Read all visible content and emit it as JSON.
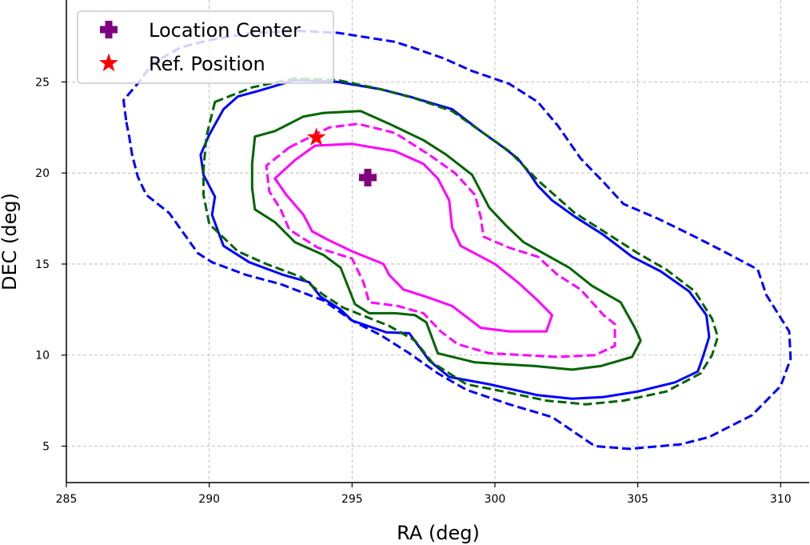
{
  "chart_data": {
    "type": "line",
    "xlabel": "RA (deg)",
    "ylabel": "DEC (deg)",
    "xlim": [
      285,
      311
    ],
    "ylim": [
      3,
      29.5
    ],
    "x_ticks": [
      285,
      290,
      295,
      300,
      305,
      310
    ],
    "y_ticks": [
      5,
      10,
      15,
      20,
      25
    ],
    "grid": true,
    "legend_placement": "top-left",
    "legend": [
      {
        "label": "Location Center",
        "marker": "plus",
        "color": "#800080"
      },
      {
        "label": "Ref. Position",
        "marker": "star",
        "color": "#ff0000"
      }
    ],
    "series": [
      {
        "color": "#0000ff",
        "dash": true,
        "points": [
          [
            287.1,
            22.8
          ],
          [
            287.2,
            22.0
          ],
          [
            287.3,
            21.0
          ],
          [
            287.5,
            19.8
          ],
          [
            287.8,
            18.8
          ],
          [
            288.6,
            17.8
          ],
          [
            289.6,
            15.6
          ],
          [
            290.1,
            15.1
          ],
          [
            291.3,
            14.4
          ],
          [
            292.5,
            13.9
          ],
          [
            294.0,
            13.0
          ],
          [
            295.0,
            11.9
          ],
          [
            296.0,
            11.1
          ],
          [
            297.0,
            10.1
          ],
          [
            298.0,
            9.0
          ],
          [
            299.0,
            8.1
          ],
          [
            300.5,
            7.3
          ],
          [
            302.0,
            6.6
          ],
          [
            303.5,
            5.0
          ],
          [
            304.7,
            4.85
          ],
          [
            306.5,
            5.1
          ],
          [
            307.5,
            5.5
          ],
          [
            309.0,
            6.7
          ],
          [
            310.0,
            8.3
          ],
          [
            310.35,
            9.8
          ],
          [
            310.3,
            11.3
          ],
          [
            309.5,
            13.3
          ],
          [
            309.2,
            14.7
          ],
          [
            308.0,
            15.7
          ],
          [
            307.0,
            16.5
          ],
          [
            305.7,
            17.5
          ],
          [
            304.5,
            18.3
          ],
          [
            303.8,
            19.5
          ],
          [
            303.0,
            20.8
          ],
          [
            302.2,
            22.6
          ],
          [
            301.5,
            23.9
          ],
          [
            300.5,
            24.9
          ],
          [
            299.2,
            25.6
          ],
          [
            298.2,
            26.3
          ],
          [
            297.1,
            26.9
          ],
          [
            296.5,
            27.2
          ],
          [
            295.3,
            27.5
          ],
          [
            294.5,
            27.7
          ],
          [
            293.2,
            27.8
          ],
          [
            291.5,
            27.7
          ],
          [
            290.0,
            27.3
          ],
          [
            289.0,
            26.9
          ],
          [
            288.0,
            26.0
          ],
          [
            287.6,
            25.1
          ],
          [
            287.0,
            24.0
          ],
          [
            287.1,
            22.8
          ]
        ]
      },
      {
        "color": "#0000ff",
        "dash": false,
        "points": [
          [
            291.0,
            24.2
          ],
          [
            291.7,
            24.5
          ],
          [
            293.0,
            25.1
          ],
          [
            294.5,
            25.0
          ],
          [
            296.0,
            24.6
          ],
          [
            297.0,
            24.2
          ],
          [
            298.5,
            23.5
          ],
          [
            299.5,
            22.3
          ],
          [
            300.3,
            21.4
          ],
          [
            300.8,
            20.8
          ],
          [
            301.2,
            20.0
          ],
          [
            301.5,
            19.3
          ],
          [
            302.0,
            18.5
          ],
          [
            302.8,
            17.6
          ],
          [
            303.8,
            16.6
          ],
          [
            304.8,
            15.4
          ],
          [
            305.8,
            14.6
          ],
          [
            306.8,
            13.5
          ],
          [
            307.4,
            12.2
          ],
          [
            307.5,
            11.0
          ],
          [
            307.3,
            10.0
          ],
          [
            307.1,
            9.1
          ],
          [
            306.3,
            8.5
          ],
          [
            305.0,
            8.0
          ],
          [
            303.8,
            7.7
          ],
          [
            302.7,
            7.6
          ],
          [
            301.5,
            7.8
          ],
          [
            299.8,
            8.4
          ],
          [
            298.4,
            8.8
          ],
          [
            297.7,
            9.7
          ],
          [
            297.0,
            11.2
          ],
          [
            296.2,
            11.25
          ],
          [
            295.0,
            11.9
          ],
          [
            294.6,
            12.5
          ],
          [
            293.9,
            13.2
          ],
          [
            293.5,
            14.0
          ],
          [
            292.6,
            14.4
          ],
          [
            291.4,
            15.1
          ],
          [
            290.5,
            16.0
          ],
          [
            290.1,
            17.7
          ],
          [
            290.2,
            18.7
          ],
          [
            289.8,
            19.9
          ],
          [
            289.7,
            21.0
          ],
          [
            290.0,
            22.1
          ],
          [
            290.5,
            23.5
          ],
          [
            291.0,
            24.2
          ]
        ]
      },
      {
        "color": "#006400",
        "dash": true,
        "points": [
          [
            290.2,
            23.9
          ],
          [
            291.5,
            24.7
          ],
          [
            293.0,
            25.2
          ],
          [
            294.5,
            25.1
          ],
          [
            296.0,
            24.6
          ],
          [
            297.2,
            24.1
          ],
          [
            298.5,
            23.4
          ],
          [
            299.5,
            22.3
          ],
          [
            300.5,
            21.2
          ],
          [
            301.5,
            19.6
          ],
          [
            302.8,
            17.8
          ],
          [
            304.0,
            16.6
          ],
          [
            305.0,
            15.6
          ],
          [
            306.0,
            14.7
          ],
          [
            307.0,
            13.5
          ],
          [
            307.6,
            12.0
          ],
          [
            307.8,
            11.0
          ],
          [
            307.6,
            10.0
          ],
          [
            307.2,
            9.0
          ],
          [
            306.0,
            8.0
          ],
          [
            304.5,
            7.5
          ],
          [
            303.2,
            7.3
          ],
          [
            301.8,
            7.5
          ],
          [
            300.3,
            8.0
          ],
          [
            299.0,
            8.4
          ],
          [
            297.8,
            9.6
          ],
          [
            297.2,
            10.8
          ],
          [
            296.3,
            11.6
          ],
          [
            294.7,
            12.6
          ],
          [
            294.0,
            13.3
          ],
          [
            293.2,
            14.3
          ],
          [
            292.0,
            15.0
          ],
          [
            291.0,
            15.7
          ],
          [
            290.0,
            17.2
          ],
          [
            289.8,
            18.8
          ],
          [
            289.8,
            20.2
          ],
          [
            289.9,
            22.0
          ],
          [
            290.2,
            23.9
          ]
        ]
      },
      {
        "color": "#006400",
        "dash": false,
        "points": [
          [
            291.6,
            22.0
          ],
          [
            292.3,
            22.3
          ],
          [
            293.3,
            23.1
          ],
          [
            294.0,
            23.3
          ],
          [
            295.3,
            23.4
          ],
          [
            296.3,
            22.7
          ],
          [
            297.5,
            21.8
          ],
          [
            298.3,
            21.0
          ],
          [
            299.2,
            19.9
          ],
          [
            299.8,
            18.1
          ],
          [
            300.4,
            17.1
          ],
          [
            301.0,
            16.2
          ],
          [
            301.8,
            15.5
          ],
          [
            302.6,
            14.8
          ],
          [
            303.4,
            13.8
          ],
          [
            304.4,
            12.9
          ],
          [
            304.9,
            11.5
          ],
          [
            305.1,
            10.8
          ],
          [
            304.8,
            9.9
          ],
          [
            303.7,
            9.4
          ],
          [
            302.7,
            9.2
          ],
          [
            301.4,
            9.4
          ],
          [
            300.3,
            9.5
          ],
          [
            299.3,
            9.6
          ],
          [
            298.0,
            10.1
          ],
          [
            297.6,
            11.8
          ],
          [
            297.2,
            12.2
          ],
          [
            296.5,
            12.3
          ],
          [
            295.6,
            12.3
          ],
          [
            295.1,
            12.8
          ],
          [
            294.6,
            14.8
          ],
          [
            294.0,
            15.5
          ],
          [
            293.0,
            16.2
          ],
          [
            292.3,
            17.3
          ],
          [
            291.6,
            18.0
          ],
          [
            291.5,
            19.2
          ],
          [
            291.5,
            20.5
          ],
          [
            291.6,
            22.0
          ]
        ]
      },
      {
        "color": "#ff00ff",
        "dash": true,
        "points": [
          [
            292.8,
            21.4
          ],
          [
            294.2,
            22.5
          ],
          [
            295.2,
            22.7
          ],
          [
            296.5,
            22.2
          ],
          [
            297.7,
            21.0
          ],
          [
            298.6,
            20.0
          ],
          [
            299.3,
            18.8
          ],
          [
            299.5,
            17.6
          ],
          [
            299.6,
            16.5
          ],
          [
            300.5,
            15.9
          ],
          [
            301.5,
            15.4
          ],
          [
            302.2,
            14.4
          ],
          [
            303.0,
            13.6
          ],
          [
            303.8,
            12.2
          ],
          [
            304.2,
            11.7
          ],
          [
            304.2,
            10.5
          ],
          [
            303.5,
            10.0
          ],
          [
            302.2,
            9.9
          ],
          [
            301.0,
            10.0
          ],
          [
            299.8,
            10.1
          ],
          [
            298.7,
            10.6
          ],
          [
            298.1,
            11.3
          ],
          [
            297.5,
            12.3
          ],
          [
            296.6,
            12.7
          ],
          [
            295.6,
            12.9
          ],
          [
            295.4,
            14.0
          ],
          [
            295.0,
            15.3
          ],
          [
            293.8,
            15.9
          ],
          [
            292.8,
            16.9
          ],
          [
            292.5,
            18.0
          ],
          [
            292.1,
            19.0
          ],
          [
            292.0,
            20.4
          ],
          [
            292.8,
            21.4
          ]
        ]
      },
      {
        "color": "#ff00ff",
        "dash": false,
        "points": [
          [
            293.0,
            20.7
          ],
          [
            293.7,
            21.5
          ],
          [
            295.0,
            21.6
          ],
          [
            296.5,
            21.2
          ],
          [
            297.5,
            20.5
          ],
          [
            298.0,
            19.7
          ],
          [
            298.4,
            18.5
          ],
          [
            298.5,
            17.0
          ],
          [
            298.8,
            16.0
          ],
          [
            300.0,
            15.0
          ],
          [
            300.8,
            14.0
          ],
          [
            301.5,
            13.0
          ],
          [
            302.0,
            12.2
          ],
          [
            301.8,
            11.3
          ],
          [
            300.5,
            11.3
          ],
          [
            299.5,
            11.5
          ],
          [
            298.5,
            12.7
          ],
          [
            297.6,
            13.2
          ],
          [
            296.8,
            13.6
          ],
          [
            296.3,
            14.4
          ],
          [
            296.1,
            15.0
          ],
          [
            295.0,
            15.7
          ],
          [
            294.2,
            16.3
          ],
          [
            293.6,
            16.8
          ],
          [
            293.3,
            17.7
          ],
          [
            292.7,
            18.8
          ],
          [
            292.3,
            19.7
          ],
          [
            293.0,
            20.7
          ]
        ]
      }
    ],
    "markers": [
      {
        "name": "Location Center",
        "x": 295.55,
        "y": 19.75,
        "marker": "plus",
        "color": "#800080"
      },
      {
        "name": "Ref. Position",
        "x": 293.75,
        "y": 21.95,
        "marker": "star",
        "color": "#ff0000"
      }
    ]
  }
}
